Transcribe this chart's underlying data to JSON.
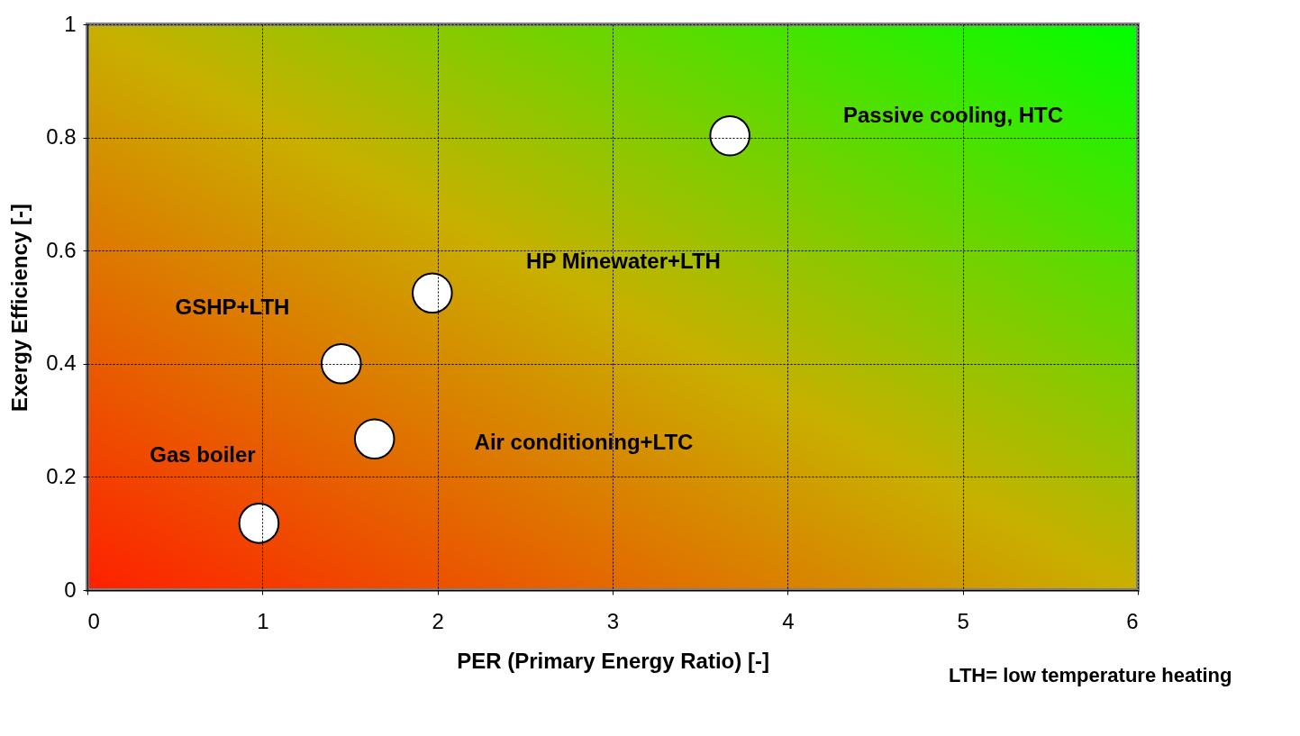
{
  "chart_data": {
    "type": "scatter",
    "xlabel": "PER (Primary Energy Ratio) [-]",
    "ylabel": "Exergy Efficiency [-]",
    "series": [
      {
        "color": "#ffffff",
        "x": [
          0.98,
          1.45,
          1.64,
          1.97,
          3.67
        ],
        "values": [
          0.118,
          0.4,
          0.267,
          0.525,
          0.803
        ]
      }
    ],
    "xlim": [
      0,
      6
    ],
    "xticks": [
      0,
      1,
      2,
      3,
      4,
      5,
      6
    ],
    "ylim": [
      0,
      1
    ],
    "yticks": [
      0,
      0.2,
      0.4,
      0.6,
      0.8,
      1
    ],
    "grid": true,
    "marker": "circle",
    "annotations": [
      "Passive cooling, HTC",
      "HP Minewater+LTH",
      "GSHP+LTH",
      "Air conditioning+LTC",
      "Gas boiler",
      "LTH= low temperature heating"
    ]
  }
}
